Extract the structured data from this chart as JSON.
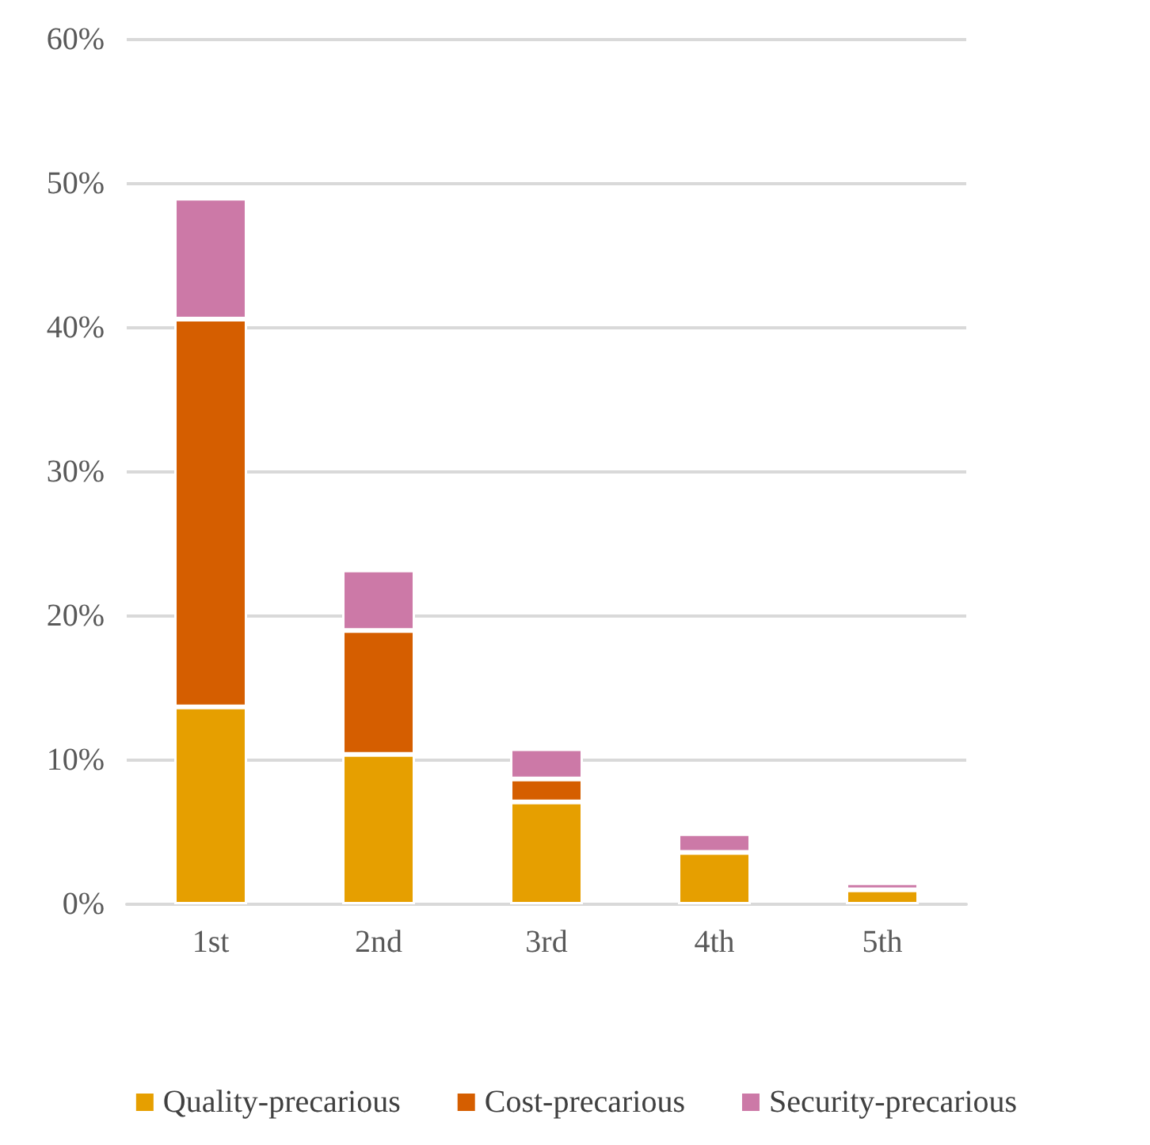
{
  "chart_data": {
    "type": "bar",
    "stacked": true,
    "categories": [
      "1st",
      "2nd",
      "3rd",
      "4th",
      "5th"
    ],
    "series": [
      {
        "name": "Quality-precarious",
        "color": "#e69f00",
        "values": [
          13.7,
          10.4,
          7.1,
          3.6,
          1.0
        ]
      },
      {
        "name": "Cost-precarious",
        "color": "#d55e00",
        "values": [
          26.9,
          8.6,
          1.6,
          0,
          0
        ]
      },
      {
        "name": "Security-precarious",
        "color": "#cc79a7",
        "values": [
          8.4,
          4.2,
          2.1,
          1.3,
          0.5
        ]
      }
    ],
    "ylim": [
      0,
      60
    ],
    "yticks": [
      {
        "value": 0,
        "label": "0%"
      },
      {
        "value": 10,
        "label": "10%"
      },
      {
        "value": 20,
        "label": "20%"
      },
      {
        "value": 30,
        "label": "30%"
      },
      {
        "value": 40,
        "label": "40%"
      },
      {
        "value": 50,
        "label": "50%"
      },
      {
        "value": 60,
        "label": "60%"
      }
    ],
    "grid": "y",
    "legend": "bottom"
  }
}
